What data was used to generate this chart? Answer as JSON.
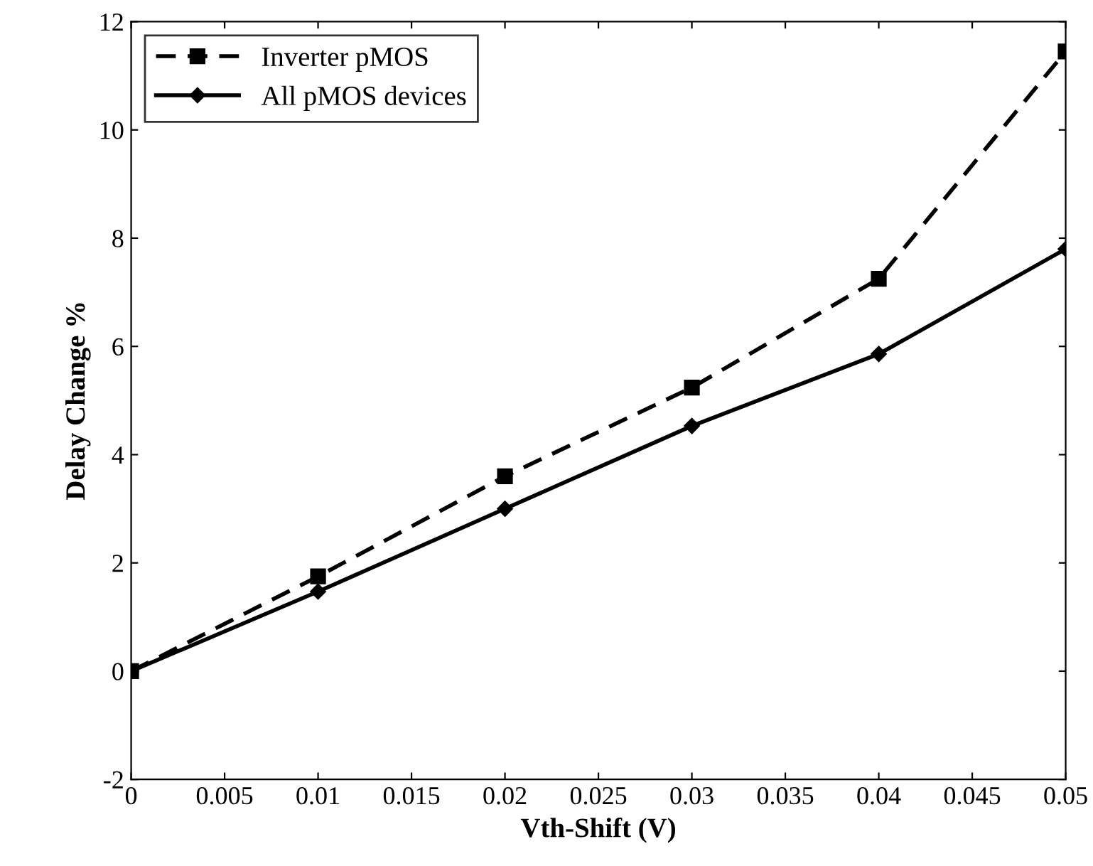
{
  "chart_data": {
    "type": "line",
    "xlabel": "Vth-Shift (V)",
    "ylabel": "Delay Change %",
    "x": [
      0,
      0.01,
      0.02,
      0.03,
      0.04,
      0.05
    ],
    "series": [
      {
        "name": "Inverter pMOS",
        "color": "#000000",
        "marker": "square",
        "line_style": "dashed",
        "values": [
          0,
          1.75,
          3.6,
          5.24,
          7.25,
          11.45
        ]
      },
      {
        "name": "All pMOS devices",
        "color": "#000000",
        "marker": "diamond",
        "line_style": "solid",
        "values": [
          0,
          1.47,
          3.0,
          4.53,
          5.86,
          7.8
        ]
      }
    ],
    "xlim": [
      0,
      0.05
    ],
    "xticks": [
      0,
      0.005,
      0.01,
      0.015,
      0.02,
      0.025,
      0.03,
      0.035,
      0.04,
      0.045,
      0.05
    ],
    "ylim": [
      -2,
      12
    ],
    "yticks": [
      -2,
      0,
      2,
      4,
      6,
      8,
      10,
      12
    ],
    "grid": false,
    "legend": "top left"
  }
}
